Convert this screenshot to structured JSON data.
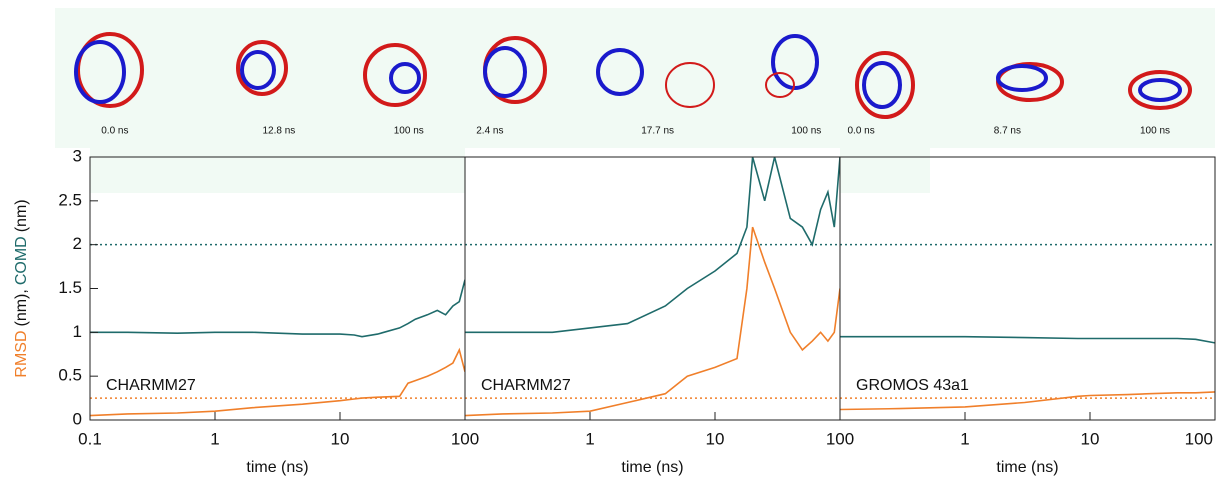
{
  "chart_data": [
    {
      "type": "line",
      "annotation": "CHARMM27",
      "snapshots": [
        "0.0 ns",
        "12.8 ns",
        "100 ns"
      ],
      "ylabel_parts": [
        "RMSD",
        "(nm),",
        "COMD",
        "(nm)"
      ],
      "xlabel": "time (ns)",
      "log_x": true,
      "xlim": [
        0.1,
        100
      ],
      "xticks": [
        0.1,
        1,
        10,
        100
      ],
      "ylim": [
        0,
        3
      ],
      "yticks": [
        0,
        0.5,
        1,
        1.5,
        2,
        2.5,
        3
      ],
      "x": [
        0.1,
        0.2,
        0.5,
        1,
        2,
        5,
        10,
        13,
        15,
        20,
        30,
        35,
        40,
        50,
        60,
        70,
        80,
        90,
        100
      ],
      "series": [
        {
          "name": "COMD",
          "color": "#1f6b6b",
          "values": [
            1.0,
            1.0,
            0.99,
            1.0,
            1.0,
            0.98,
            0.98,
            0.97,
            0.95,
            0.98,
            1.05,
            1.1,
            1.15,
            1.2,
            1.25,
            1.2,
            1.3,
            1.35,
            1.6
          ]
        },
        {
          "name": "RMSD",
          "color": "#f07f2a",
          "values": [
            0.05,
            0.07,
            0.08,
            0.1,
            0.14,
            0.18,
            0.22,
            0.24,
            0.25,
            0.26,
            0.27,
            0.42,
            0.45,
            0.5,
            0.55,
            0.6,
            0.65,
            0.8,
            0.55
          ]
        }
      ],
      "reference_lines": [
        {
          "value": 2,
          "color": "#1f6b6b"
        },
        {
          "value": 0.25,
          "color": "#f07f2a"
        }
      ]
    },
    {
      "type": "line",
      "annotation": "CHARMM27",
      "snapshots": [
        "2.4 ns",
        "17.7 ns",
        "100 ns"
      ],
      "xlabel": "time (ns)",
      "log_x": true,
      "xlim": [
        0.1,
        100
      ],
      "xticks": [
        1,
        10,
        100
      ],
      "ylim": [
        0,
        3
      ],
      "x": [
        0.1,
        0.2,
        0.5,
        1,
        2,
        4,
        6,
        10,
        15,
        18,
        20,
        25,
        30,
        40,
        50,
        60,
        70,
        80,
        90,
        100
      ],
      "series": [
        {
          "name": "COMD",
          "color": "#1f6b6b",
          "values": [
            1.0,
            1.0,
            1.0,
            1.05,
            1.1,
            1.3,
            1.5,
            1.7,
            1.9,
            2.2,
            3.0,
            2.5,
            3.0,
            2.3,
            2.2,
            2.0,
            2.4,
            2.6,
            2.2,
            3.0
          ]
        },
        {
          "name": "RMSD",
          "color": "#f07f2a",
          "values": [
            0.05,
            0.07,
            0.08,
            0.1,
            0.2,
            0.3,
            0.5,
            0.6,
            0.7,
            1.5,
            2.2,
            1.8,
            1.5,
            1.0,
            0.8,
            0.9,
            1.0,
            0.9,
            1.0,
            1.5
          ]
        }
      ],
      "reference_lines": [
        {
          "value": 2,
          "color": "#1f6b6b"
        },
        {
          "value": 0.25,
          "color": "#f07f2a"
        }
      ]
    },
    {
      "type": "line",
      "annotation": "GROMOS 43a1",
      "snapshots": [
        "0.0 ns",
        "8.7 ns",
        "100 ns"
      ],
      "xlabel": "time (ns)",
      "log_x": true,
      "xlim": [
        0.1,
        100
      ],
      "xticks": [
        1,
        10,
        100
      ],
      "ylim": [
        0,
        3
      ],
      "x": [
        0.1,
        0.3,
        1,
        3,
        8,
        10,
        20,
        30,
        50,
        70,
        100
      ],
      "series": [
        {
          "name": "COMD",
          "color": "#1f6b6b",
          "values": [
            0.95,
            0.95,
            0.95,
            0.94,
            0.93,
            0.93,
            0.93,
            0.93,
            0.93,
            0.92,
            0.88
          ]
        },
        {
          "name": "RMSD",
          "color": "#f07f2a",
          "values": [
            0.12,
            0.13,
            0.15,
            0.2,
            0.27,
            0.28,
            0.29,
            0.3,
            0.31,
            0.31,
            0.32
          ]
        }
      ],
      "reference_lines": [
        {
          "value": 2,
          "color": "#1f6b6b"
        },
        {
          "value": 0.25,
          "color": "#f07f2a"
        }
      ]
    }
  ]
}
